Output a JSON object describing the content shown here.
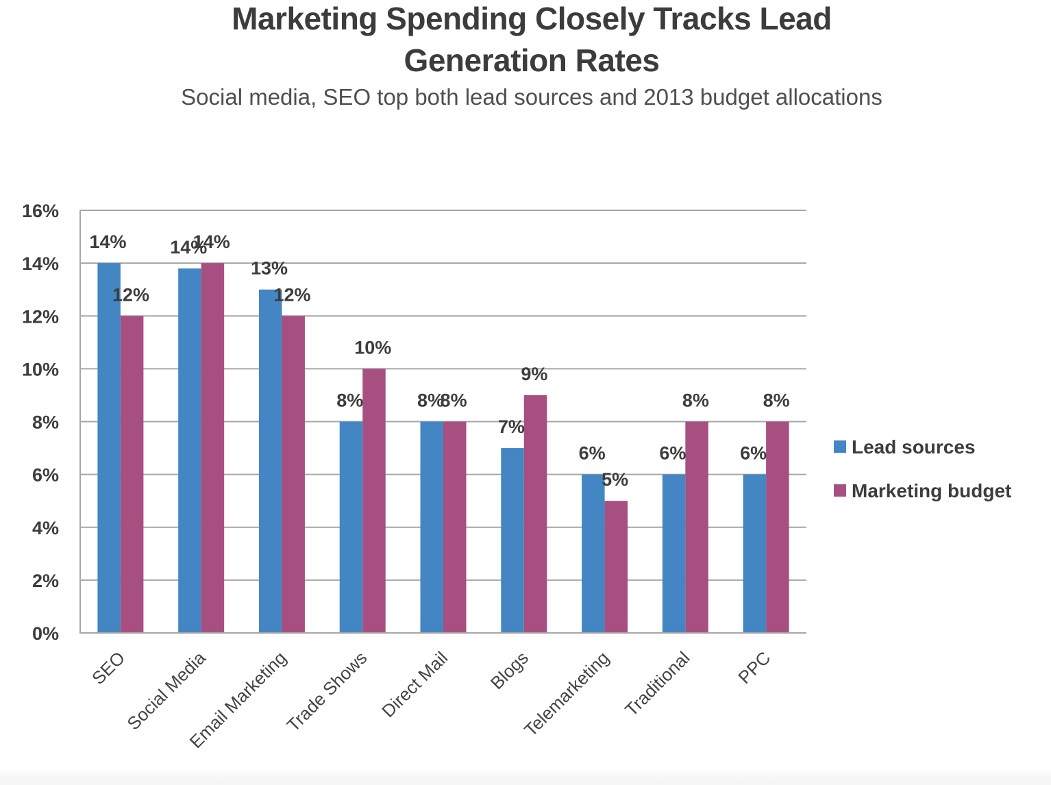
{
  "title_lines": [
    "Marketing Spending Closely Tracks Lead",
    "Generation Rates"
  ],
  "subtitle": "Social media, SEO top both lead sources and 2013 budget allocations",
  "chart_data": {
    "type": "bar",
    "title": "Marketing Spending Closely Tracks Lead Generation Rates",
    "subtitle": "Social media, SEO top both lead sources and 2013 budget allocations",
    "xlabel": "",
    "ylabel": "",
    "categories": [
      "SEO",
      "Social Media",
      "Email Marketing",
      "Trade Shows",
      "Direct Mail",
      "Blogs",
      "Telemarketing",
      "Traditional",
      "PPC"
    ],
    "series": [
      {
        "name": "Lead sources",
        "color": "#4386c3",
        "values": [
          14,
          13.8,
          13,
          8,
          8,
          7,
          6,
          6,
          6
        ],
        "labels": [
          "14%",
          "14%",
          "13%",
          "8%",
          "8%",
          "7%",
          "6%",
          "6%",
          "6%"
        ]
      },
      {
        "name": "Marketing budget",
        "color": "#a84f82",
        "values": [
          12,
          14,
          12,
          10,
          8,
          9,
          5,
          8,
          8
        ],
        "labels": [
          "12%",
          "14%",
          "12%",
          "10%",
          "8%",
          "9%",
          "5%",
          "8%",
          "8%"
        ]
      }
    ],
    "ylim": [
      0,
      16
    ],
    "yticks": [
      0,
      2,
      4,
      6,
      8,
      10,
      12,
      14,
      16
    ],
    "ytick_labels": [
      "0%",
      "2%",
      "4%",
      "6%",
      "8%",
      "10%",
      "12%",
      "14%",
      "16%"
    ],
    "grid": true,
    "legend_position": "right"
  }
}
